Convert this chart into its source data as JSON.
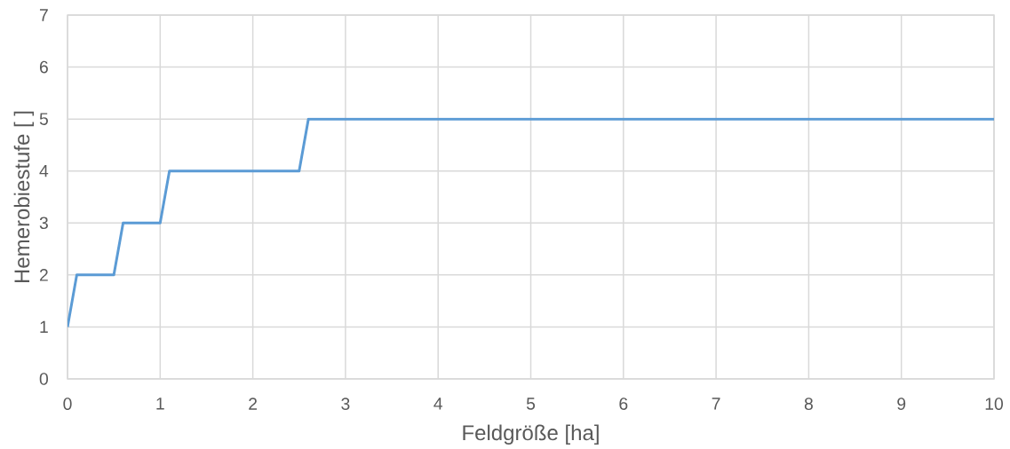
{
  "chart_data": {
    "type": "line",
    "xlabel": "Feldgröße [ha]",
    "ylabel": "Hemerobiestufe [ ]",
    "x": [
      0,
      0.1,
      0.5,
      0.6,
      1,
      1.1,
      2.5,
      2.6,
      10
    ],
    "series": [
      {
        "color": "#5b9bd5",
        "values": [
          1,
          2,
          2,
          3,
          3,
          4,
          4,
          5,
          5
        ]
      }
    ],
    "xlim": [
      0,
      10
    ],
    "ylim": [
      0,
      7
    ],
    "xticks": [
      0,
      1,
      2,
      3,
      4,
      5,
      6,
      7,
      8,
      9,
      10
    ],
    "yticks": [
      0,
      1,
      2,
      3,
      4,
      5,
      6,
      7
    ],
    "grid": true,
    "marker": "none",
    "line_style": "solid"
  }
}
